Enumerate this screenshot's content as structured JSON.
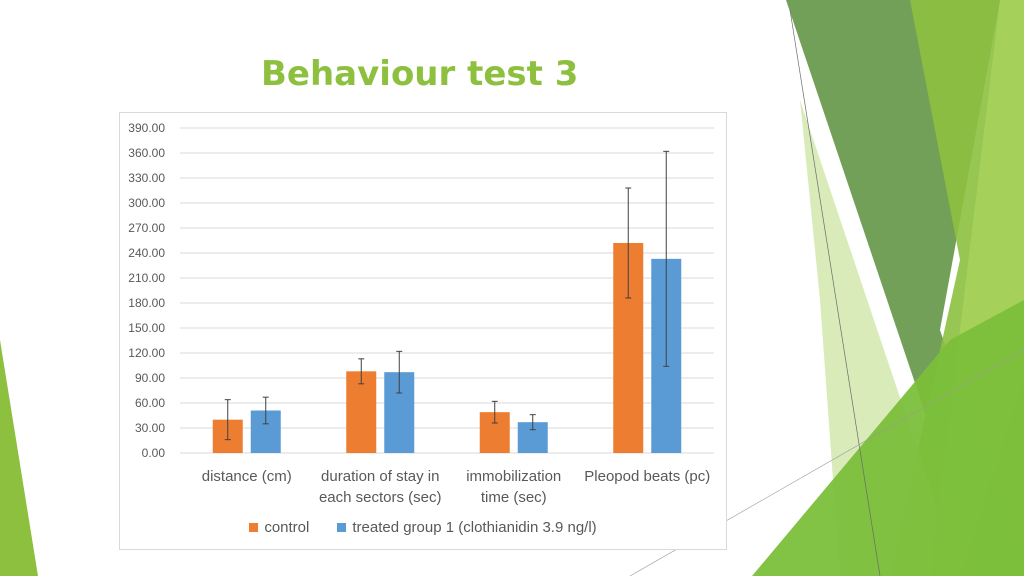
{
  "slide": {
    "title": "Behaviour test 3"
  },
  "colors": {
    "title": "#8dc03f",
    "control": "#ed7d31",
    "treated": "#5b9bd5",
    "grid": "#d9d9d9",
    "axis_text": "#595959",
    "error_bar": "#404040"
  },
  "chart_data": {
    "type": "bar",
    "title": "",
    "xlabel": "",
    "ylabel": "",
    "ylim": [
      0,
      390
    ],
    "ytick_step": 30,
    "ytick_decimals": 2,
    "grid": true,
    "legend_position": "bottom",
    "categories": [
      [
        "distance (cm)"
      ],
      [
        "duration of stay in",
        "each sectors (sec)"
      ],
      [
        "immobilization",
        "time (sec)"
      ],
      [
        "Pleopod beats (pc)"
      ]
    ],
    "series": [
      {
        "name": "control",
        "color": "#ed7d31",
        "values": [
          40,
          98,
          49,
          252
        ],
        "errors": [
          24,
          15,
          13,
          66
        ]
      },
      {
        "name": "treated group 1 (clothianidin 3.9 ng/l)",
        "color": "#5b9bd5",
        "values": [
          51,
          97,
          37,
          233
        ],
        "errors": [
          16,
          25,
          9,
          129
        ]
      }
    ]
  }
}
